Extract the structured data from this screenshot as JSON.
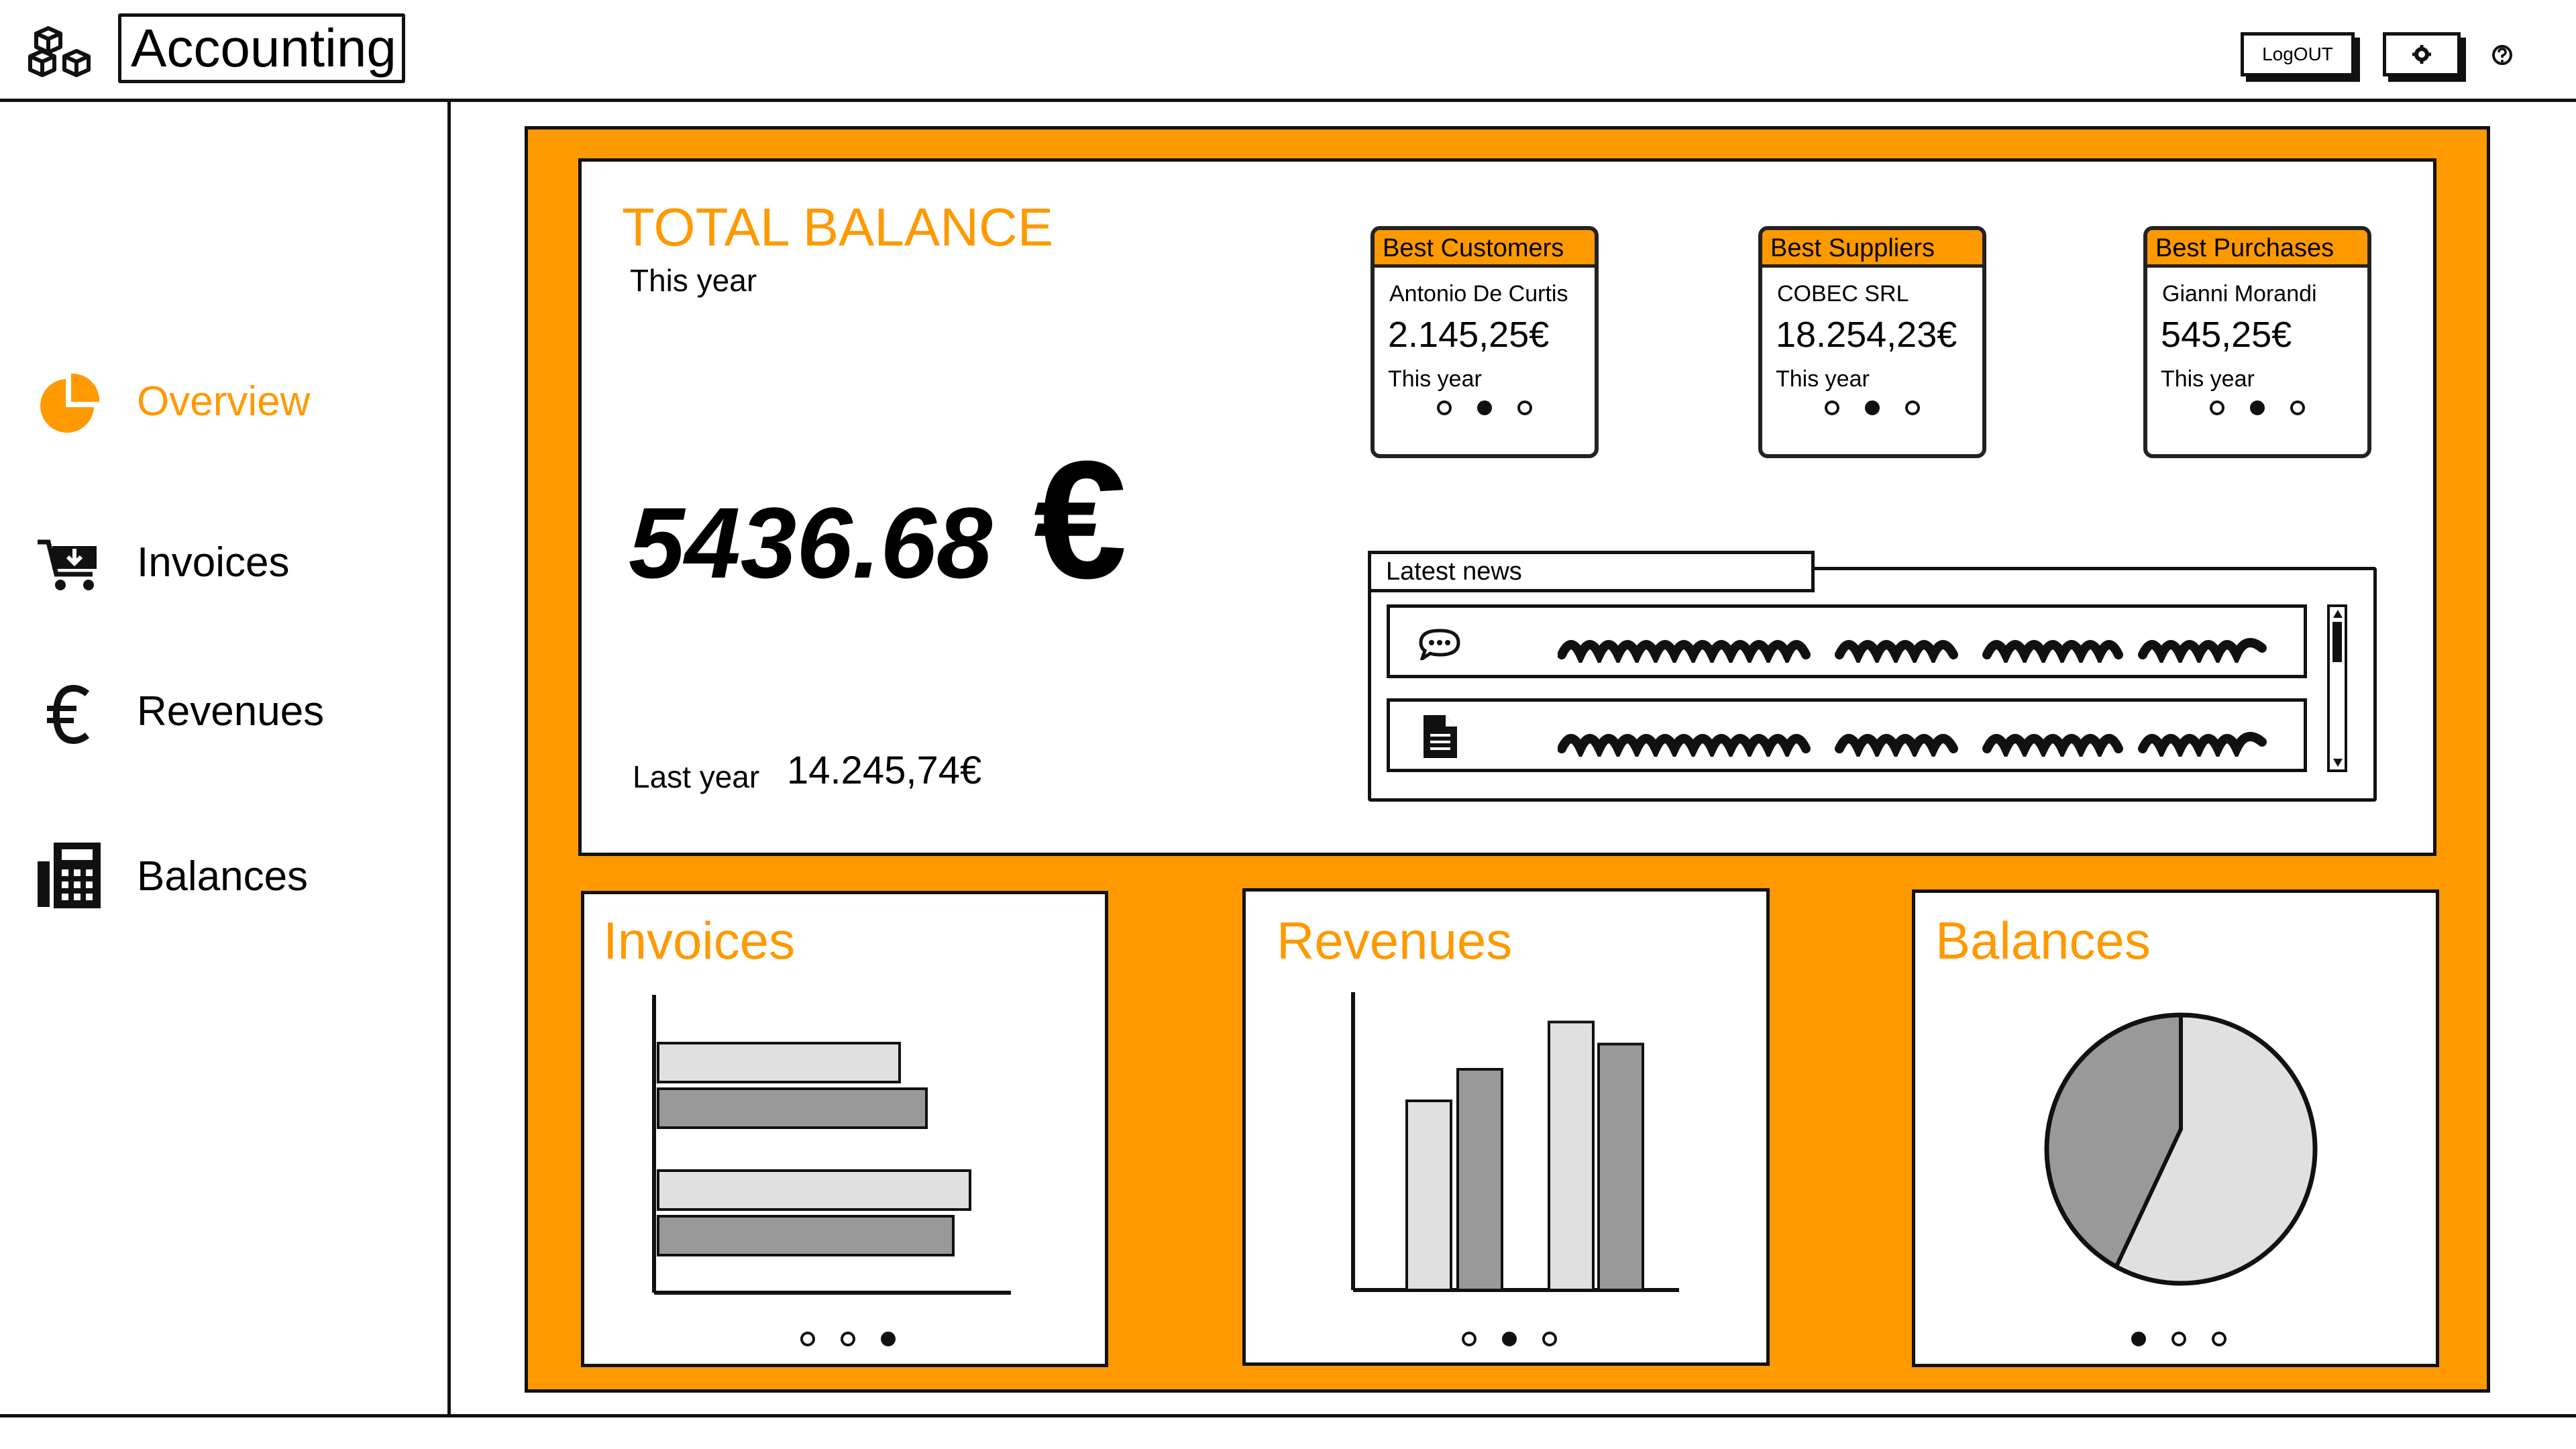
{
  "header": {
    "app_title": "Accounting",
    "logout_label": "LogOUT",
    "icons": {
      "logo": "cubes-icon",
      "settings": "gear-icon",
      "help": "help-icon"
    }
  },
  "sidebar": {
    "items": [
      {
        "label": "Overview",
        "icon": "pie-chart-icon",
        "active": true
      },
      {
        "label": "Invoices",
        "icon": "cart-icon",
        "active": false
      },
      {
        "label": "Revenues",
        "icon": "euro-icon",
        "active": false
      },
      {
        "label": "Balances",
        "icon": "calculator-icon",
        "active": false
      }
    ]
  },
  "colors": {
    "accent": "#ff9900",
    "ink": "#111111",
    "light_bar": "#e0e0e0",
    "dark_bar": "#999999"
  },
  "balance": {
    "title": "TOTAL BALANCE",
    "period": "This year",
    "amount": "5436.68",
    "currency": "€",
    "last_year_label": "Last year",
    "last_year_value": "14.245,74€"
  },
  "highlights": [
    {
      "title": "Best Customers",
      "name": "Antonio De Curtis",
      "value": "2.145,25€",
      "period": "This year",
      "active_dot": 1
    },
    {
      "title": "Best Suppliers",
      "name": "COBEC SRL",
      "value": "18.254,23€",
      "period": "This year",
      "active_dot": 1
    },
    {
      "title": "Best Purchases",
      "name": "Gianni Morandi",
      "value": "545,25€",
      "period": "This year",
      "active_dot": 1
    }
  ],
  "news": {
    "title": "Latest news",
    "items": [
      {
        "icon": "comment-icon"
      },
      {
        "icon": "document-icon"
      }
    ]
  },
  "widgets": {
    "invoices": {
      "title": "Invoices",
      "active_dot": 2
    },
    "revenues": {
      "title": "Revenues",
      "active_dot": 1
    },
    "balances": {
      "title": "Balances",
      "active_dot": 0
    }
  },
  "chart_data": [
    {
      "type": "bar",
      "orientation": "horizontal",
      "title": "Invoices",
      "values": [
        0.72,
        0.8,
        0.93,
        0.88
      ],
      "note_values_relative": true
    },
    {
      "type": "bar",
      "title": "Revenues",
      "values": [
        0.6,
        0.7,
        0.85,
        0.78
      ],
      "series": [
        {
          "values": [
            0.6,
            0.85
          ]
        },
        {
          "values": [
            0.7,
            0.78
          ]
        }
      ]
    },
    {
      "type": "pie",
      "title": "Balances",
      "values": [
        0.42,
        0.58
      ]
    }
  ]
}
